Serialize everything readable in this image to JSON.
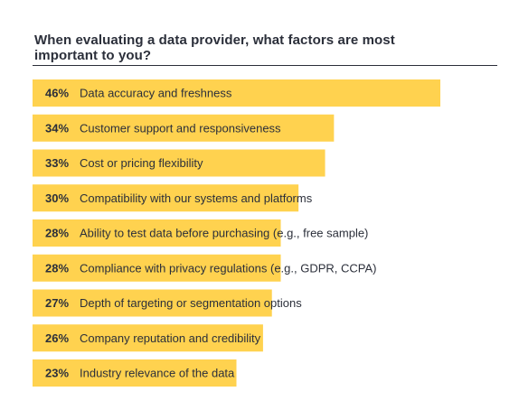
{
  "chart_data": {
    "type": "bar",
    "orientation": "horizontal",
    "title": "When evaluating a data provider, what factors are most important to you?",
    "categories": [
      "Data accuracy and freshness",
      "Customer support and responsiveness",
      "Cost or pricing flexibility",
      "Compatibility with our systems and platforms",
      "Ability to test data before purchasing (e.g., free sample)",
      "Compliance with privacy regulations (e.g., GDPR, CCPA)",
      "Depth of targeting or segmentation options",
      "Company reputation and credibility",
      "Industry relevance of the data"
    ],
    "values": [
      46,
      34,
      33,
      30,
      28,
      28,
      27,
      26,
      23
    ],
    "value_labels": [
      "46%",
      "34%",
      "33%",
      "30%",
      "28%",
      "28%",
      "27%",
      "26%",
      "23%"
    ],
    "unit": "%",
    "xlim": [
      0,
      50
    ],
    "bar_color": "#ffd24f",
    "text_color": "#2b2f3a",
    "grid": false,
    "legend": "none"
  }
}
